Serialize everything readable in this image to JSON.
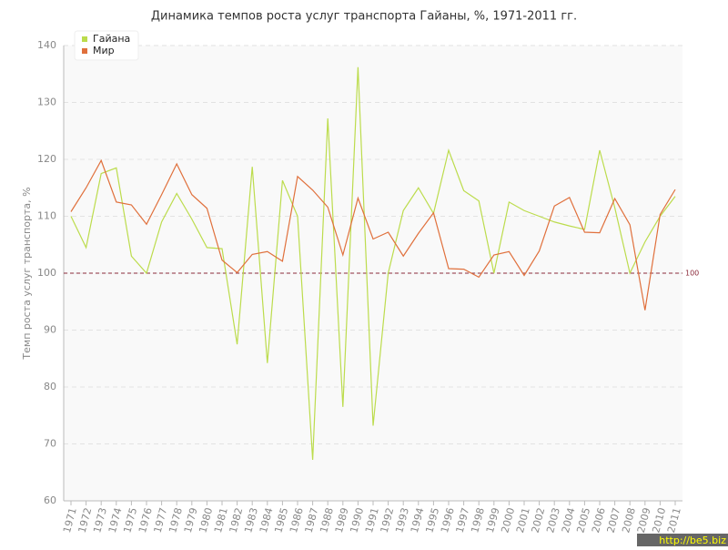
{
  "chart_data": {
    "type": "line",
    "title": "Динамика темпов роста услуг транспорта Гайаны, %, 1971-2011 гг.",
    "y_label": "Темп роста услуг транспорта, %",
    "categories": [
      "1971",
      "1972",
      "1973",
      "1974",
      "1975",
      "1976",
      "1977",
      "1978",
      "1979",
      "1980",
      "1981",
      "1982",
      "1983",
      "1984",
      "1985",
      "1986",
      "1987",
      "1988",
      "1989",
      "1990",
      "1991",
      "1992",
      "1993",
      "1994",
      "1995",
      "1996",
      "1997",
      "1998",
      "1999",
      "2000",
      "2001",
      "2002",
      "2003",
      "2004",
      "2005",
      "2006",
      "2007",
      "2008",
      "2009",
      "2010",
      "2011"
    ],
    "series": [
      {
        "name": "Гайана",
        "color": "#bcdc4c",
        "values": [
          110,
          104.5,
          117.5,
          118.5,
          103,
          100,
          109,
          114,
          109.5,
          104.5,
          104.3,
          87.5,
          118.7,
          84.2,
          116.3,
          110,
          67.2,
          127.2,
          76.5,
          136.2,
          73.2,
          100,
          111,
          115,
          110.5,
          121.6,
          114.5,
          112.7,
          100,
          112.5,
          111,
          110,
          109,
          108.3,
          107.7,
          121.6,
          111.5,
          100,
          105.5,
          110,
          113.5
        ]
      },
      {
        "name": "Мир",
        "color": "#e0703c",
        "values": [
          110.8,
          115,
          119.8,
          112.5,
          112,
          108.6,
          113.8,
          119.2,
          113.8,
          111.4,
          102.3,
          100.1,
          103.3,
          103.8,
          102.1,
          117,
          114.6,
          111.6,
          103.2,
          113.2,
          106,
          107.2,
          103,
          107,
          110.6,
          100.8,
          100.7,
          99.3,
          103.2,
          103.8,
          99.6,
          103.9,
          111.8,
          113.3,
          107.2,
          107.1,
          113.1,
          108.5,
          93.5,
          110.3,
          114.7
        ]
      }
    ],
    "ylim": [
      60,
      140
    ],
    "yticks": [
      60,
      70,
      80,
      90,
      100,
      110,
      120,
      130,
      140
    ],
    "grid": true,
    "reference_line": {
      "value": 100,
      "label": "100",
      "color": "#8b2a3a"
    },
    "legend": "top-left",
    "watermark": "http://be5.biz"
  }
}
